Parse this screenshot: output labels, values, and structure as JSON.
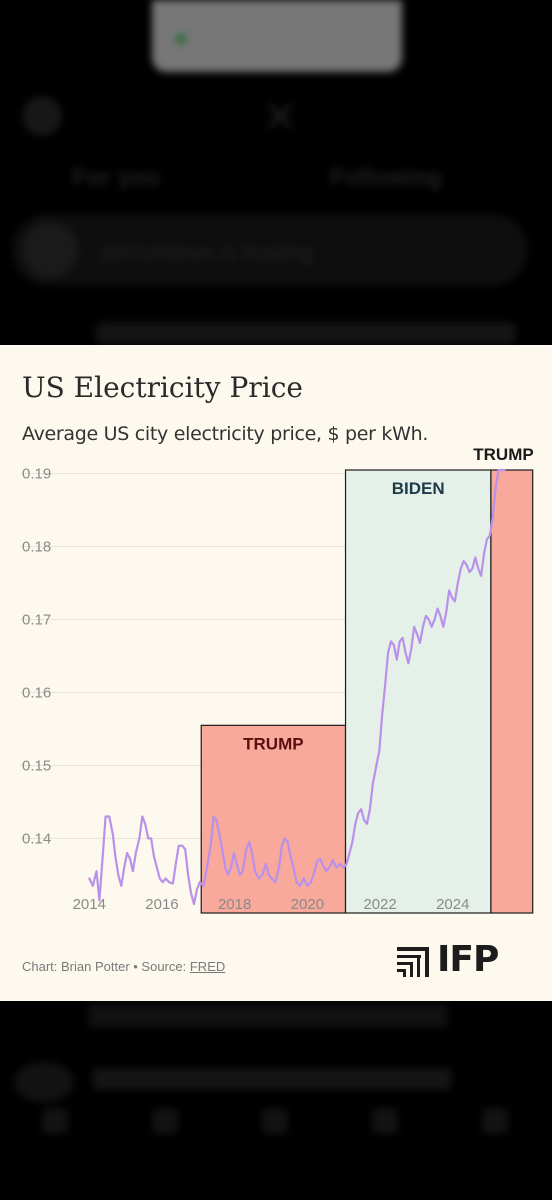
{
  "chart_data": {
    "type": "line",
    "title": "US Electricity Price",
    "subtitle": "Average US city electricity price, $ per kWh.",
    "xlabel": "",
    "ylabel": "",
    "xlim": [
      2013.8,
      2025.85
    ],
    "ylim": [
      0.1295,
      0.1905
    ],
    "x_ticks": [
      "2014",
      "2016",
      "2018",
      "2020",
      "2022",
      "2024"
    ],
    "y_ticks": [
      "0.19",
      "0.18",
      "0.17",
      "0.16",
      "0.15",
      "0.14"
    ],
    "grid": true,
    "eras": [
      {
        "label": "TRUMP",
        "start": 2017.08,
        "end": 2021.05,
        "top_value": 0.1555,
        "color": "#f8a99b",
        "label_color": "#5a0f0f"
      },
      {
        "label": "BIDEN",
        "start": 2021.05,
        "end": 2025.05,
        "top_value": 0.1905,
        "color": "#e5f0e8",
        "label_color": "#1f3a4a"
      },
      {
        "label": "TRUMP",
        "start": 2025.05,
        "end": 2026.2,
        "top_value": 0.1905,
        "color": "#f8a99b",
        "label_color": "#1a1a1a"
      }
    ],
    "series": [
      {
        "color": "#b991ea",
        "points": [
          [
            2014.0,
            0.1345
          ],
          [
            2014.1,
            0.1335
          ],
          [
            2014.2,
            0.1355
          ],
          [
            2014.28,
            0.1315
          ],
          [
            2014.36,
            0.137
          ],
          [
            2014.45,
            0.143
          ],
          [
            2014.55,
            0.143
          ],
          [
            2014.65,
            0.1405
          ],
          [
            2014.72,
            0.1375
          ],
          [
            2014.8,
            0.135
          ],
          [
            2014.88,
            0.1335
          ],
          [
            2014.96,
            0.136
          ],
          [
            2015.04,
            0.138
          ],
          [
            2015.12,
            0.1372
          ],
          [
            2015.2,
            0.1355
          ],
          [
            2015.28,
            0.138
          ],
          [
            2015.38,
            0.14
          ],
          [
            2015.46,
            0.143
          ],
          [
            2015.54,
            0.142
          ],
          [
            2015.62,
            0.14
          ],
          [
            2015.7,
            0.14
          ],
          [
            2015.78,
            0.1375
          ],
          [
            2015.86,
            0.136
          ],
          [
            2015.94,
            0.1345
          ],
          [
            2016.02,
            0.134
          ],
          [
            2016.1,
            0.1345
          ],
          [
            2016.2,
            0.134
          ],
          [
            2016.3,
            0.1338
          ],
          [
            2016.38,
            0.1365
          ],
          [
            2016.46,
            0.139
          ],
          [
            2016.56,
            0.139
          ],
          [
            2016.64,
            0.1385
          ],
          [
            2016.72,
            0.135
          ],
          [
            2016.8,
            0.1325
          ],
          [
            2016.88,
            0.131
          ],
          [
            2016.96,
            0.133
          ],
          [
            2017.04,
            0.134
          ],
          [
            2017.14,
            0.1335
          ],
          [
            2017.24,
            0.136
          ],
          [
            2017.34,
            0.139
          ],
          [
            2017.42,
            0.143
          ],
          [
            2017.5,
            0.1425
          ],
          [
            2017.58,
            0.1405
          ],
          [
            2017.66,
            0.1385
          ],
          [
            2017.74,
            0.136
          ],
          [
            2017.82,
            0.135
          ],
          [
            2017.9,
            0.136
          ],
          [
            2017.98,
            0.138
          ],
          [
            2018.06,
            0.1365
          ],
          [
            2018.14,
            0.135
          ],
          [
            2018.22,
            0.1355
          ],
          [
            2018.32,
            0.1385
          ],
          [
            2018.4,
            0.1395
          ],
          [
            2018.48,
            0.138
          ],
          [
            2018.56,
            0.1355
          ],
          [
            2018.66,
            0.1345
          ],
          [
            2018.76,
            0.135
          ],
          [
            2018.86,
            0.1365
          ],
          [
            2018.94,
            0.135
          ],
          [
            2019.02,
            0.1345
          ],
          [
            2019.12,
            0.134
          ],
          [
            2019.22,
            0.136
          ],
          [
            2019.3,
            0.139
          ],
          [
            2019.38,
            0.14
          ],
          [
            2019.46,
            0.1395
          ],
          [
            2019.54,
            0.1375
          ],
          [
            2019.62,
            0.136
          ],
          [
            2019.7,
            0.134
          ],
          [
            2019.8,
            0.1335
          ],
          [
            2019.9,
            0.1345
          ],
          [
            2020.0,
            0.1335
          ],
          [
            2020.1,
            0.134
          ],
          [
            2020.2,
            0.1355
          ],
          [
            2020.28,
            0.137
          ],
          [
            2020.36,
            0.1372
          ],
          [
            2020.44,
            0.1362
          ],
          [
            2020.52,
            0.1355
          ],
          [
            2020.6,
            0.136
          ],
          [
            2020.7,
            0.137
          ],
          [
            2020.8,
            0.136
          ],
          [
            2020.9,
            0.1365
          ],
          [
            2021.0,
            0.136
          ],
          [
            2021.08,
            0.1365
          ],
          [
            2021.16,
            0.138
          ],
          [
            2021.24,
            0.1395
          ],
          [
            2021.32,
            0.142
          ],
          [
            2021.4,
            0.1435
          ],
          [
            2021.48,
            0.144
          ],
          [
            2021.56,
            0.1425
          ],
          [
            2021.64,
            0.142
          ],
          [
            2021.72,
            0.144
          ],
          [
            2021.8,
            0.1475
          ],
          [
            2021.9,
            0.15
          ],
          [
            2021.98,
            0.152
          ],
          [
            2022.06,
            0.157
          ],
          [
            2022.14,
            0.161
          ],
          [
            2022.22,
            0.1655
          ],
          [
            2022.3,
            0.167
          ],
          [
            2022.38,
            0.1665
          ],
          [
            2022.46,
            0.1645
          ],
          [
            2022.54,
            0.167
          ],
          [
            2022.62,
            0.1675
          ],
          [
            2022.7,
            0.1655
          ],
          [
            2022.78,
            0.164
          ],
          [
            2022.86,
            0.166
          ],
          [
            2022.94,
            0.169
          ],
          [
            2023.02,
            0.168
          ],
          [
            2023.1,
            0.1668
          ],
          [
            2023.18,
            0.169
          ],
          [
            2023.26,
            0.1705
          ],
          [
            2023.34,
            0.17
          ],
          [
            2023.42,
            0.169
          ],
          [
            2023.5,
            0.17
          ],
          [
            2023.58,
            0.1715
          ],
          [
            2023.66,
            0.1705
          ],
          [
            2023.74,
            0.169
          ],
          [
            2023.82,
            0.171
          ],
          [
            2023.9,
            0.174
          ],
          [
            2023.98,
            0.173
          ],
          [
            2024.06,
            0.1725
          ],
          [
            2024.14,
            0.175
          ],
          [
            2024.22,
            0.177
          ],
          [
            2024.3,
            0.178
          ],
          [
            2024.38,
            0.1775
          ],
          [
            2024.46,
            0.1765
          ],
          [
            2024.54,
            0.177
          ],
          [
            2024.62,
            0.1785
          ],
          [
            2024.7,
            0.177
          ],
          [
            2024.78,
            0.176
          ],
          [
            2024.86,
            0.179
          ],
          [
            2024.94,
            0.181
          ],
          [
            2025.02,
            0.1815
          ],
          [
            2025.1,
            0.184
          ],
          [
            2025.18,
            0.188
          ],
          [
            2025.26,
            0.1905
          ],
          [
            2025.34,
            0.1905
          ],
          [
            2025.42,
            0.1905
          ]
        ]
      }
    ]
  },
  "footer": {
    "credit_prefix": "Chart: Brian Potter • Source: ",
    "source_link": "FRED"
  },
  "logo": {
    "text": "IFP"
  },
  "background": {
    "tab_left": "For you",
    "tab_right": "Following",
    "banner_text": "@FoxNews is hosting"
  }
}
